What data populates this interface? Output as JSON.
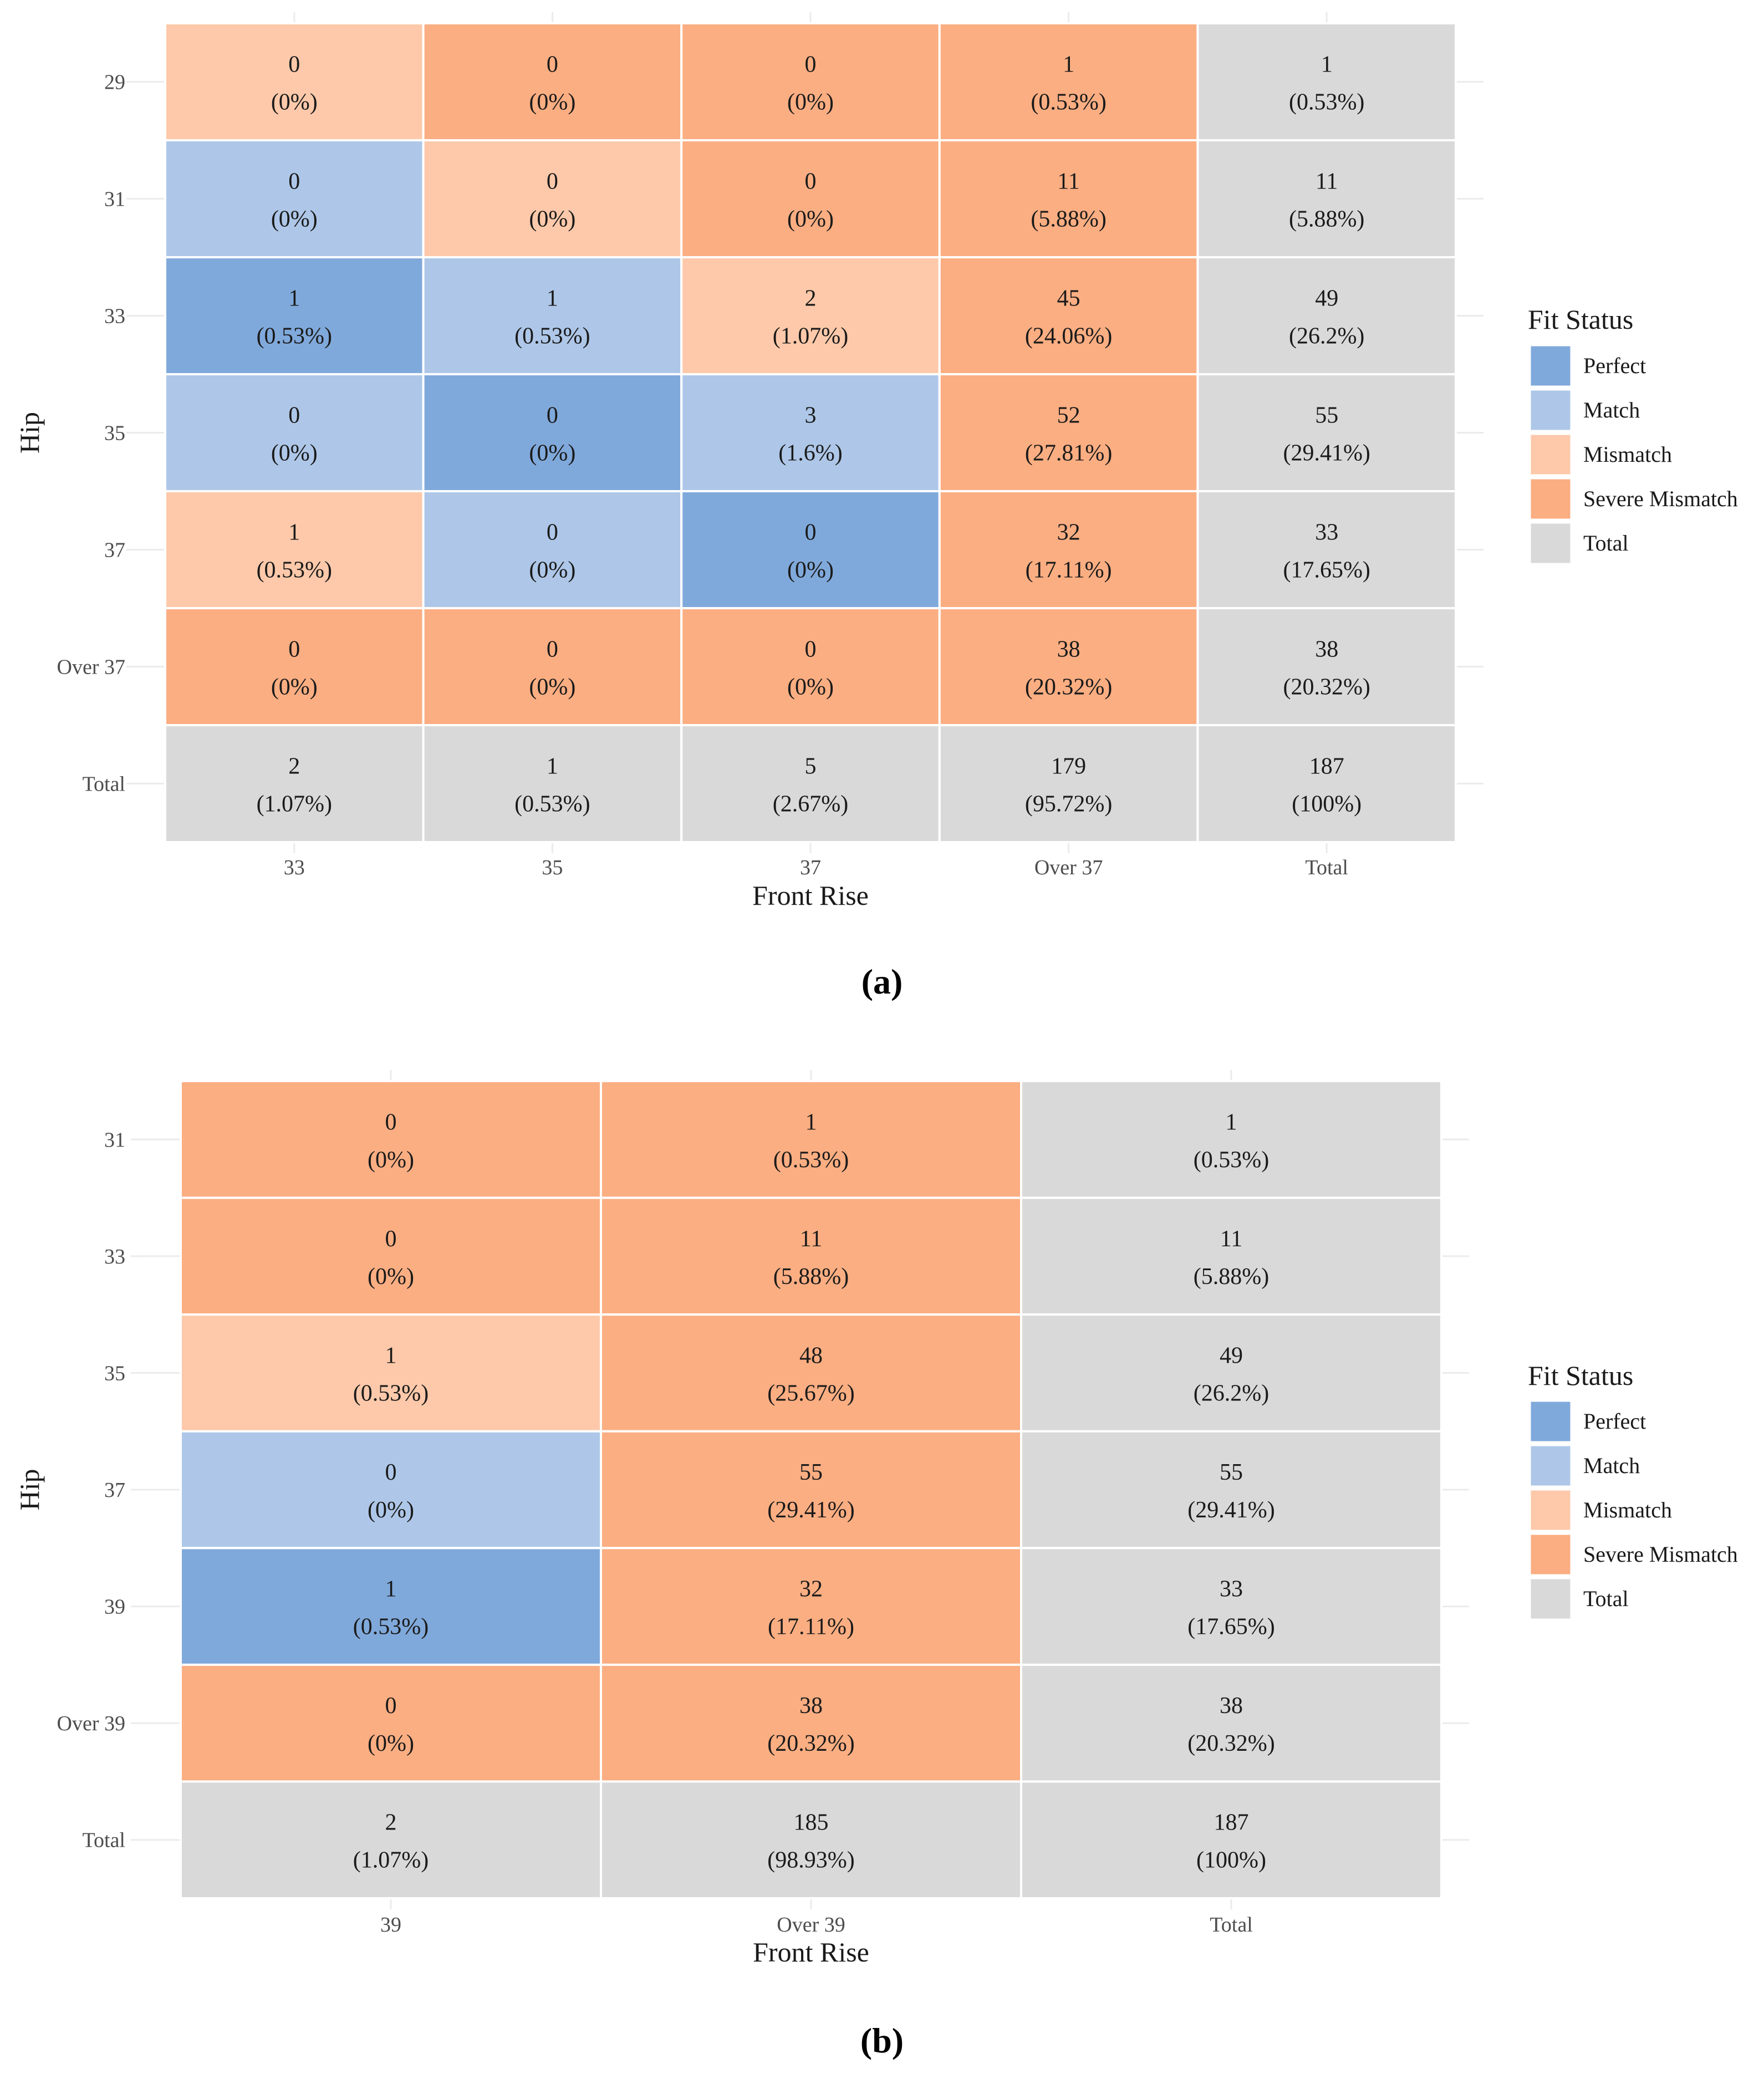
{
  "colors": {
    "Perfect": "#80A9DB",
    "Match": "#AEC7E8",
    "Mismatch": "#FDC9AA",
    "Severe Mismatch": "#FBAE82",
    "Total": "#D9D9D9",
    "grid": "#EBEBEB",
    "text": "#1a1a1a",
    "axis_text": "#4d4d4d"
  },
  "chart_data": [
    {
      "type": "heatmap",
      "panel_label": "(a)",
      "xlabel": "Front Rise",
      "ylabel": "Hip",
      "x_categories": [
        "33",
        "35",
        "37",
        "Over 37",
        "Total"
      ],
      "y_categories": [
        "29",
        "31",
        "33",
        "35",
        "37",
        "Over 37",
        "Total"
      ],
      "legend": {
        "title": "Fit Status",
        "items": [
          "Perfect",
          "Match",
          "Mismatch",
          "Severe Mismatch",
          "Total"
        ]
      },
      "cells": [
        [
          {
            "count": "0",
            "pct": "(0%)",
            "status": "Mismatch"
          },
          {
            "count": "0",
            "pct": "(0%)",
            "status": "Severe Mismatch"
          },
          {
            "count": "0",
            "pct": "(0%)",
            "status": "Severe Mismatch"
          },
          {
            "count": "1",
            "pct": "(0.53%)",
            "status": "Severe Mismatch"
          },
          {
            "count": "1",
            "pct": "(0.53%)",
            "status": "Total"
          }
        ],
        [
          {
            "count": "0",
            "pct": "(0%)",
            "status": "Match"
          },
          {
            "count": "0",
            "pct": "(0%)",
            "status": "Mismatch"
          },
          {
            "count": "0",
            "pct": "(0%)",
            "status": "Severe Mismatch"
          },
          {
            "count": "11",
            "pct": "(5.88%)",
            "status": "Severe Mismatch"
          },
          {
            "count": "11",
            "pct": "(5.88%)",
            "status": "Total"
          }
        ],
        [
          {
            "count": "1",
            "pct": "(0.53%)",
            "status": "Perfect"
          },
          {
            "count": "1",
            "pct": "(0.53%)",
            "status": "Match"
          },
          {
            "count": "2",
            "pct": "(1.07%)",
            "status": "Mismatch"
          },
          {
            "count": "45",
            "pct": "(24.06%)",
            "status": "Severe Mismatch"
          },
          {
            "count": "49",
            "pct": "(26.2%)",
            "status": "Total"
          }
        ],
        [
          {
            "count": "0",
            "pct": "(0%)",
            "status": "Match"
          },
          {
            "count": "0",
            "pct": "(0%)",
            "status": "Perfect"
          },
          {
            "count": "3",
            "pct": "(1.6%)",
            "status": "Match"
          },
          {
            "count": "52",
            "pct": "(27.81%)",
            "status": "Severe Mismatch"
          },
          {
            "count": "55",
            "pct": "(29.41%)",
            "status": "Total"
          }
        ],
        [
          {
            "count": "1",
            "pct": "(0.53%)",
            "status": "Mismatch"
          },
          {
            "count": "0",
            "pct": "(0%)",
            "status": "Match"
          },
          {
            "count": "0",
            "pct": "(0%)",
            "status": "Perfect"
          },
          {
            "count": "32",
            "pct": "(17.11%)",
            "status": "Severe Mismatch"
          },
          {
            "count": "33",
            "pct": "(17.65%)",
            "status": "Total"
          }
        ],
        [
          {
            "count": "0",
            "pct": "(0%)",
            "status": "Severe Mismatch"
          },
          {
            "count": "0",
            "pct": "(0%)",
            "status": "Severe Mismatch"
          },
          {
            "count": "0",
            "pct": "(0%)",
            "status": "Severe Mismatch"
          },
          {
            "count": "38",
            "pct": "(20.32%)",
            "status": "Severe Mismatch"
          },
          {
            "count": "38",
            "pct": "(20.32%)",
            "status": "Total"
          }
        ],
        [
          {
            "count": "2",
            "pct": "(1.07%)",
            "status": "Total"
          },
          {
            "count": "1",
            "pct": "(0.53%)",
            "status": "Total"
          },
          {
            "count": "5",
            "pct": "(2.67%)",
            "status": "Total"
          },
          {
            "count": "179",
            "pct": "(95.72%)",
            "status": "Total"
          },
          {
            "count": "187",
            "pct": "(100%)",
            "status": "Total"
          }
        ]
      ]
    },
    {
      "type": "heatmap",
      "panel_label": "(b)",
      "xlabel": "Front Rise",
      "ylabel": "Hip",
      "x_categories": [
        "39",
        "Over 39",
        "Total"
      ],
      "y_categories": [
        "31",
        "33",
        "35",
        "37",
        "39",
        "Over 39",
        "Total"
      ],
      "legend": {
        "title": "Fit Status",
        "items": [
          "Perfect",
          "Match",
          "Mismatch",
          "Severe Mismatch",
          "Total"
        ]
      },
      "cells": [
        [
          {
            "count": "0",
            "pct": "(0%)",
            "status": "Severe Mismatch"
          },
          {
            "count": "1",
            "pct": "(0.53%)",
            "status": "Severe Mismatch"
          },
          {
            "count": "1",
            "pct": "(0.53%)",
            "status": "Total"
          }
        ],
        [
          {
            "count": "0",
            "pct": "(0%)",
            "status": "Severe Mismatch"
          },
          {
            "count": "11",
            "pct": "(5.88%)",
            "status": "Severe Mismatch"
          },
          {
            "count": "11",
            "pct": "(5.88%)",
            "status": "Total"
          }
        ],
        [
          {
            "count": "1",
            "pct": "(0.53%)",
            "status": "Mismatch"
          },
          {
            "count": "48",
            "pct": "(25.67%)",
            "status": "Severe Mismatch"
          },
          {
            "count": "49",
            "pct": "(26.2%)",
            "status": "Total"
          }
        ],
        [
          {
            "count": "0",
            "pct": "(0%)",
            "status": "Match"
          },
          {
            "count": "55",
            "pct": "(29.41%)",
            "status": "Severe Mismatch"
          },
          {
            "count": "55",
            "pct": "(29.41%)",
            "status": "Total"
          }
        ],
        [
          {
            "count": "1",
            "pct": "(0.53%)",
            "status": "Perfect"
          },
          {
            "count": "32",
            "pct": "(17.11%)",
            "status": "Severe Mismatch"
          },
          {
            "count": "33",
            "pct": "(17.65%)",
            "status": "Total"
          }
        ],
        [
          {
            "count": "0",
            "pct": "(0%)",
            "status": "Severe Mismatch"
          },
          {
            "count": "38",
            "pct": "(20.32%)",
            "status": "Severe Mismatch"
          },
          {
            "count": "38",
            "pct": "(20.32%)",
            "status": "Total"
          }
        ],
        [
          {
            "count": "2",
            "pct": "(1.07%)",
            "status": "Total"
          },
          {
            "count": "185",
            "pct": "(98.93%)",
            "status": "Total"
          },
          {
            "count": "187",
            "pct": "(100%)",
            "status": "Total"
          }
        ]
      ]
    }
  ]
}
